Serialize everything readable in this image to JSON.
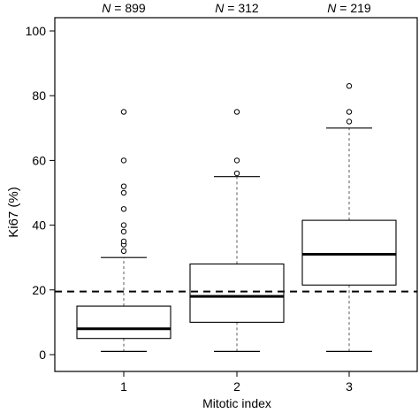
{
  "chart_data": {
    "type": "box",
    "title": "",
    "xlabel": "Mitotic index",
    "ylabel": "Ki67 (%)",
    "ylim": [
      0,
      100
    ],
    "yticks": [
      0,
      20,
      40,
      60,
      80,
      100
    ],
    "categories": [
      "1",
      "2",
      "3"
    ],
    "n_labels": [
      {
        "prefix": "N",
        "text": " = 899"
      },
      {
        "prefix": "N",
        "text": " = 312"
      },
      {
        "prefix": "N",
        "text": " = 219"
      }
    ],
    "boxes": [
      {
        "category": "1",
        "whisker_low": 1,
        "q1": 5,
        "median": 8,
        "q3": 15,
        "whisker_high": 30,
        "outliers": [
          32,
          34,
          35,
          38,
          40,
          45,
          50,
          52,
          60,
          75
        ]
      },
      {
        "category": "2",
        "whisker_low": 1,
        "q1": 10,
        "median": 18,
        "q3": 28,
        "whisker_high": 55,
        "outliers": [
          56,
          60,
          75
        ]
      },
      {
        "category": "3",
        "whisker_low": 1,
        "q1": 21.5,
        "median": 31,
        "q3": 41.5,
        "whisker_high": 70,
        "outliers": [
          72,
          75,
          83
        ]
      }
    ],
    "reference_line": {
      "y": 19.5,
      "style": "dashed"
    },
    "grid": false,
    "colors": {
      "box_fill": "#ffffff",
      "stroke": "#000000",
      "whisker": "#555555"
    }
  }
}
